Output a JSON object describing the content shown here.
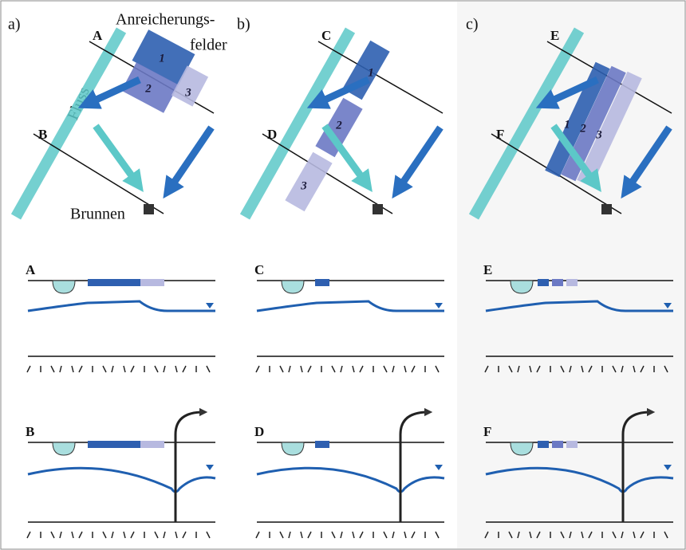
{
  "panels": [
    {
      "label": "a)",
      "fields": [
        "1",
        "2",
        "3"
      ],
      "section_top": "A",
      "section_bottom": "B"
    },
    {
      "label": "b)",
      "fields": [
        "1",
        "2",
        "3"
      ],
      "section_top": "C",
      "section_bottom": "D"
    },
    {
      "label": "c)",
      "fields": [
        "1",
        "2",
        "3"
      ],
      "section_top": "E",
      "section_bottom": "F"
    }
  ],
  "annotations": {
    "fields_title_line1": "Anreicherungs-",
    "fields_title_line2": "felder",
    "river": "Fluss",
    "well": "Brunnen"
  }
}
